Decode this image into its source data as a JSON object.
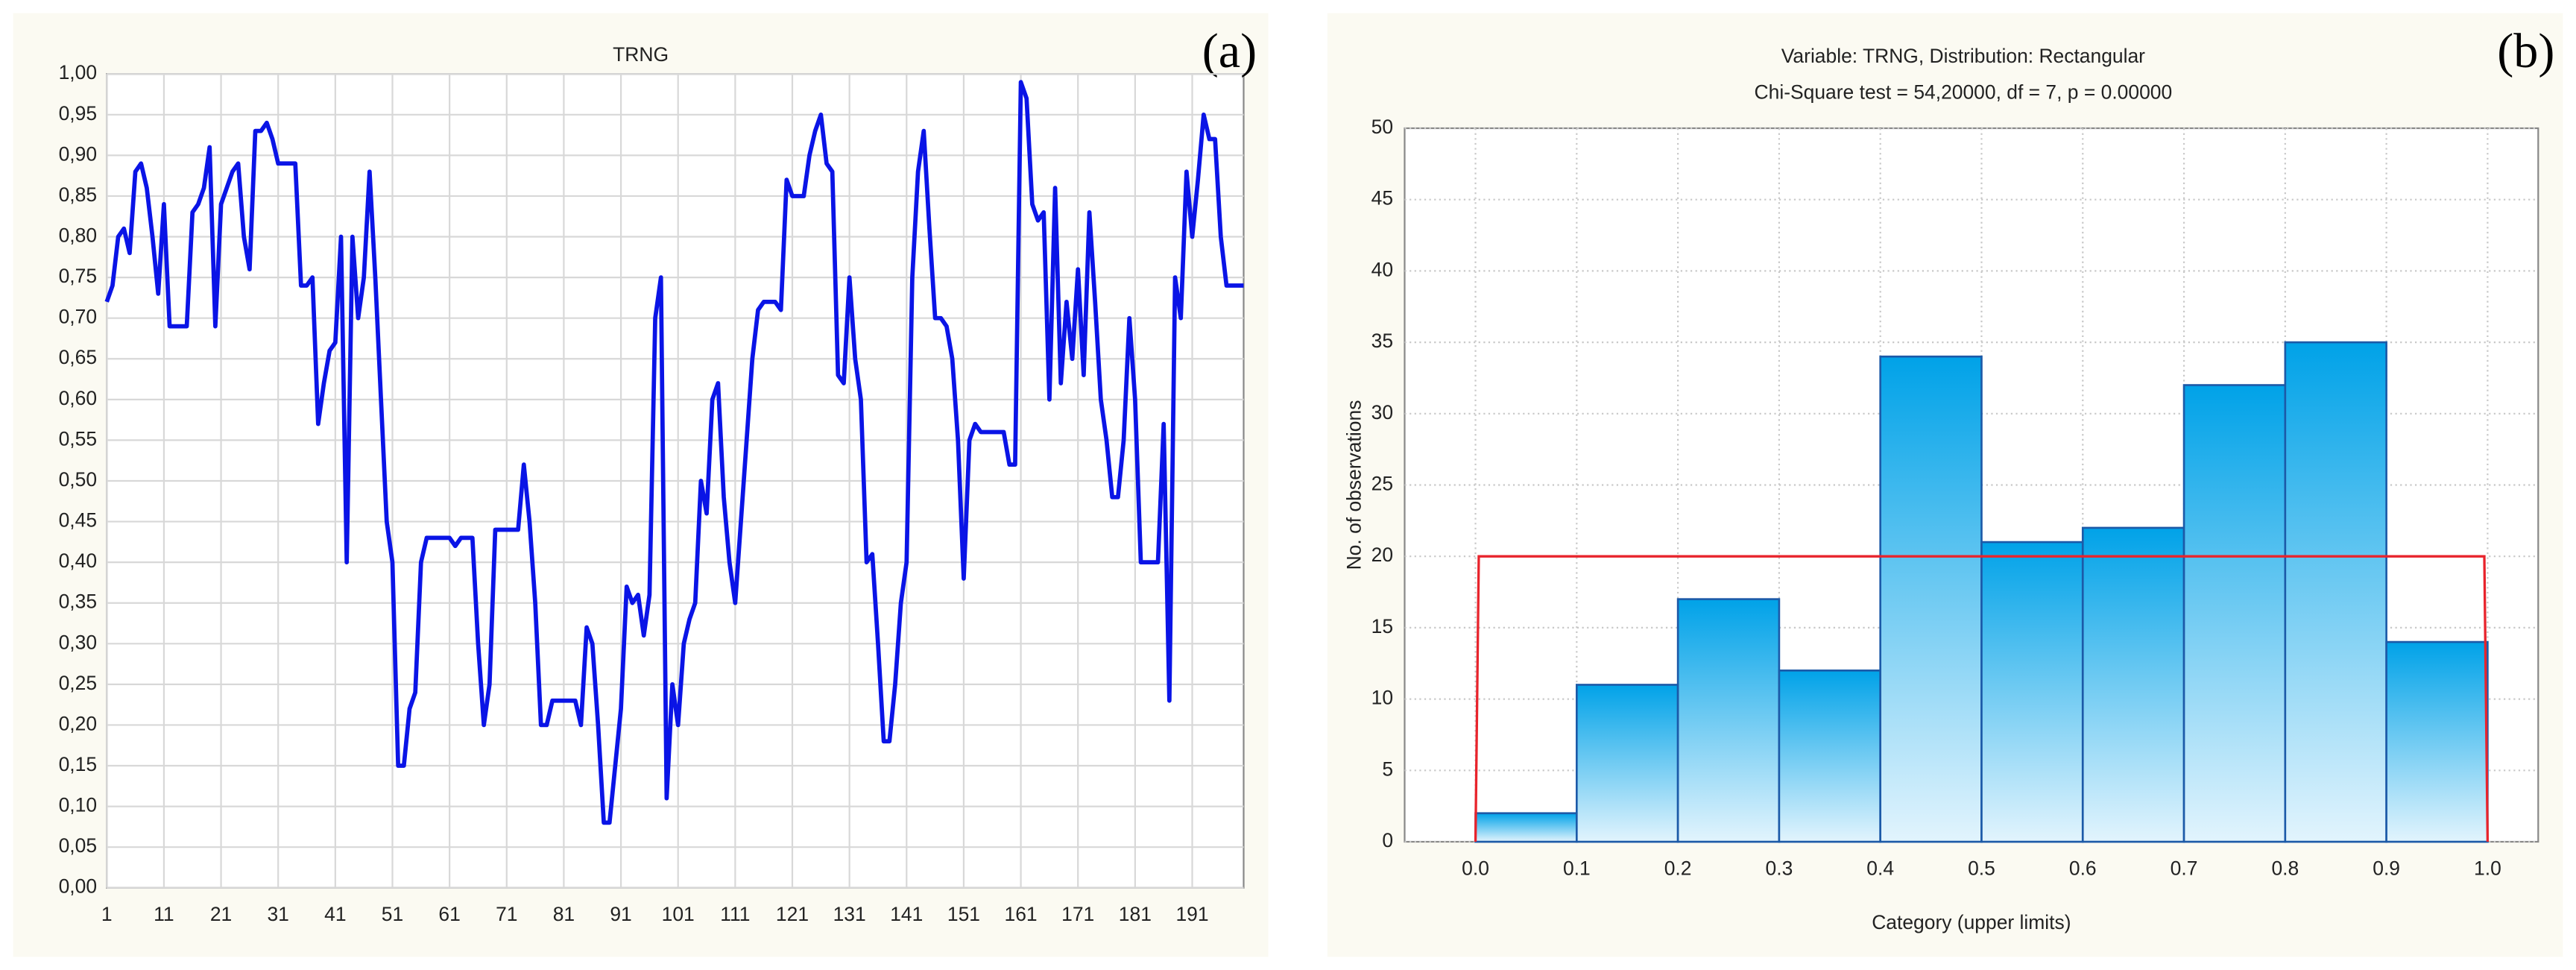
{
  "chart_data": [
    {
      "type": "line",
      "panel_label": "(a)",
      "title": "TRNG",
      "x": [
        1,
        2,
        3,
        4,
        5,
        6,
        7,
        8,
        9,
        10,
        11,
        12,
        13,
        14,
        15,
        16,
        17,
        18,
        19,
        20,
        21,
        22,
        23,
        24,
        25,
        26,
        27,
        28,
        29,
        30,
        31,
        32,
        33,
        34,
        35,
        36,
        37,
        38,
        39,
        40,
        41,
        42,
        43,
        44,
        45,
        46,
        47,
        48,
        49,
        50,
        51,
        52,
        53,
        54,
        55,
        56,
        57,
        58,
        59,
        60,
        61,
        62,
        63,
        64,
        65,
        66,
        67,
        68,
        69,
        70,
        71,
        72,
        73,
        74,
        75,
        76,
        77,
        78,
        79,
        80,
        81,
        82,
        83,
        84,
        85,
        86,
        87,
        88,
        89,
        90,
        91,
        92,
        93,
        94,
        95,
        96,
        97,
        98,
        99,
        100,
        101,
        102,
        103,
        104,
        105,
        106,
        107,
        108,
        109,
        110,
        111,
        112,
        113,
        114,
        115,
        116,
        117,
        118,
        119,
        120,
        121,
        122,
        123,
        124,
        125,
        126,
        127,
        128,
        129,
        130,
        131,
        132,
        133,
        134,
        135,
        136,
        137,
        138,
        139,
        140,
        141,
        142,
        143,
        144,
        145,
        146,
        147,
        148,
        149,
        150,
        151,
        152,
        153,
        154,
        155,
        156,
        157,
        158,
        159,
        160,
        161,
        162,
        163,
        164,
        165,
        166,
        167,
        168,
        169,
        170,
        171,
        172,
        173,
        174,
        175,
        176,
        177,
        178,
        179,
        180,
        181,
        182,
        183,
        184,
        185,
        186,
        187,
        188,
        189,
        190,
        191,
        192,
        193,
        194,
        195,
        196,
        197,
        198,
        199,
        200
      ],
      "series": [
        {
          "name": "TRNG",
          "color": "#0a14e6",
          "values": [
            0.72,
            0.74,
            0.8,
            0.81,
            0.78,
            0.88,
            0.89,
            0.86,
            0.8,
            0.73,
            0.84,
            0.69,
            0.69,
            0.69,
            0.69,
            0.83,
            0.84,
            0.86,
            0.91,
            0.69,
            0.84,
            0.86,
            0.88,
            0.89,
            0.8,
            0.76,
            0.93,
            0.93,
            0.94,
            0.92,
            0.89,
            0.89,
            0.89,
            0.89,
            0.74,
            0.74,
            0.75,
            0.57,
            0.62,
            0.66,
            0.67,
            0.8,
            0.4,
            0.8,
            0.7,
            0.75,
            0.88,
            0.75,
            0.6,
            0.45,
            0.4,
            0.15,
            0.15,
            0.22,
            0.24,
            0.4,
            0.43,
            0.43,
            0.43,
            0.43,
            0.43,
            0.42,
            0.43,
            0.43,
            0.43,
            0.3,
            0.2,
            0.25,
            0.44,
            0.44,
            0.44,
            0.44,
            0.44,
            0.52,
            0.45,
            0.35,
            0.2,
            0.2,
            0.23,
            0.23,
            0.23,
            0.23,
            0.23,
            0.2,
            0.32,
            0.3,
            0.2,
            0.08,
            0.08,
            0.15,
            0.22,
            0.37,
            0.35,
            0.36,
            0.31,
            0.36,
            0.7,
            0.75,
            0.11,
            0.25,
            0.2,
            0.3,
            0.33,
            0.35,
            0.5,
            0.46,
            0.6,
            0.62,
            0.48,
            0.4,
            0.35,
            0.45,
            0.55,
            0.65,
            0.71,
            0.72,
            0.72,
            0.72,
            0.71,
            0.87,
            0.85,
            0.85,
            0.85,
            0.9,
            0.93,
            0.95,
            0.89,
            0.88,
            0.63,
            0.62,
            0.75,
            0.65,
            0.6,
            0.4,
            0.41,
            0.3,
            0.18,
            0.18,
            0.25,
            0.35,
            0.4,
            0.75,
            0.88,
            0.93,
            0.81,
            0.7,
            0.7,
            0.69,
            0.65,
            0.55,
            0.38,
            0.55,
            0.57,
            0.56,
            0.56,
            0.56,
            0.56,
            0.56,
            0.52,
            0.52,
            0.99,
            0.97,
            0.84,
            0.82,
            0.83,
            0.6,
            0.86,
            0.62,
            0.72,
            0.65,
            0.76,
            0.63,
            0.83,
            0.72,
            0.6,
            0.55,
            0.48,
            0.48,
            0.55,
            0.7,
            0.6,
            0.4,
            0.4,
            0.4,
            0.4,
            0.57,
            0.23,
            0.75,
            0.7,
            0.88,
            0.8,
            0.87,
            0.95,
            0.92,
            0.92,
            0.8,
            0.74,
            0.74,
            0.74,
            0.74
          ]
        }
      ],
      "xlim": [
        1,
        200
      ],
      "xticks": [
        1,
        11,
        21,
        31,
        41,
        51,
        61,
        71,
        81,
        91,
        101,
        111,
        121,
        131,
        141,
        151,
        161,
        171,
        181,
        191
      ],
      "ylim": [
        0,
        1
      ],
      "yticks": [
        {
          "value": 0,
          "label": "0,00"
        },
        {
          "value": 0.05,
          "label": "0,05"
        },
        {
          "value": 0.1,
          "label": "0,10"
        },
        {
          "value": 0.15,
          "label": "0,15"
        },
        {
          "value": 0.2,
          "label": "0,20"
        },
        {
          "value": 0.25,
          "label": "0,25"
        },
        {
          "value": 0.3,
          "label": "0,30"
        },
        {
          "value": 0.35,
          "label": "0,35"
        },
        {
          "value": 0.4,
          "label": "0,40"
        },
        {
          "value": 0.45,
          "label": "0,45"
        },
        {
          "value": 0.5,
          "label": "0,50"
        },
        {
          "value": 0.55,
          "label": "0,55"
        },
        {
          "value": 0.6,
          "label": "0,60"
        },
        {
          "value": 0.65,
          "label": "0,65"
        },
        {
          "value": 0.7,
          "label": "0,70"
        },
        {
          "value": 0.75,
          "label": "0,75"
        },
        {
          "value": 0.8,
          "label": "0,80"
        },
        {
          "value": 0.85,
          "label": "0,85"
        },
        {
          "value": 0.9,
          "label": "0,90"
        },
        {
          "value": 0.95,
          "label": "0,95"
        },
        {
          "value": 1,
          "label": "1,00"
        }
      ],
      "grid": true
    },
    {
      "type": "histogram",
      "panel_label": "(b)",
      "title": "Variable: TRNG, Distribution: Rectangular",
      "subtitle": "Chi-Square test = 54,20000, df = 7, p = 0.00000",
      "xlabel": "Category (upper limits)",
      "ylabel": "No. of observations",
      "bins": [
        0,
        0.1,
        0.2,
        0.3,
        0.4,
        0.5,
        0.6,
        0.7,
        0.8,
        0.9,
        1.0
      ],
      "values": [
        2,
        11,
        17,
        12,
        34,
        21,
        22,
        32,
        35,
        14
      ],
      "color": "#00a2e8",
      "edge_color": "#1c5aa8",
      "expected": 20,
      "expected_color": "#e8242c",
      "xlim": [
        -0.07,
        1.05
      ],
      "xticks": [
        {
          "value": 0,
          "label": "0.0"
        },
        {
          "value": 0.1,
          "label": "0.1"
        },
        {
          "value": 0.2,
          "label": "0.2"
        },
        {
          "value": 0.3,
          "label": "0.3"
        },
        {
          "value": 0.4,
          "label": "0.4"
        },
        {
          "value": 0.5,
          "label": "0.5"
        },
        {
          "value": 0.6,
          "label": "0.6"
        },
        {
          "value": 0.7,
          "label": "0.7"
        },
        {
          "value": 0.8,
          "label": "0.8"
        },
        {
          "value": 0.9,
          "label": "0.9"
        },
        {
          "value": 1.0,
          "label": "1.0"
        }
      ],
      "ylim": [
        0,
        50
      ],
      "yticks": [
        0,
        5,
        10,
        15,
        20,
        25,
        30,
        35,
        40,
        45,
        50
      ],
      "grid": true
    }
  ]
}
